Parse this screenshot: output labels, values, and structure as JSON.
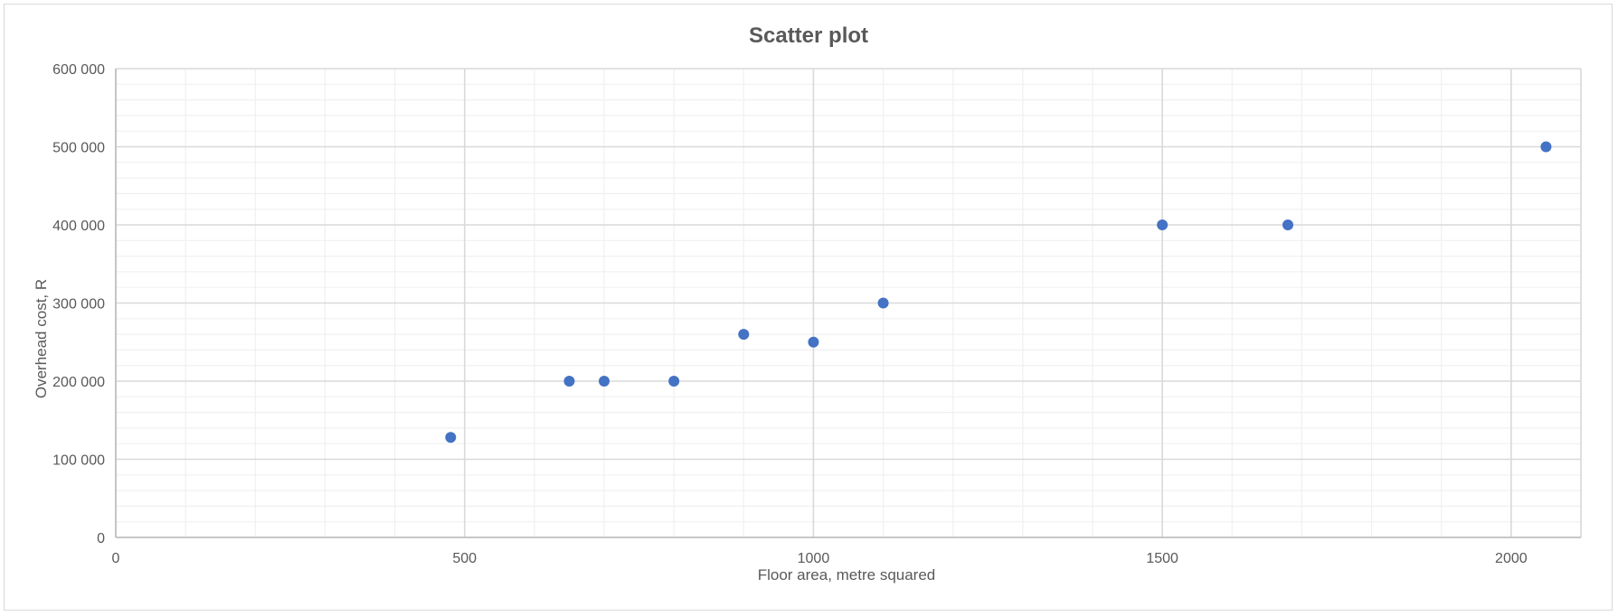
{
  "chart_data": {
    "type": "scatter",
    "title": "Scatter plot",
    "xlabel": "Floor area, metre squared",
    "ylabel": "Overhead cost, R",
    "xlim": [
      0,
      2100
    ],
    "ylim": [
      0,
      600000
    ],
    "x_ticks": [
      0,
      500,
      1000,
      1500,
      2000
    ],
    "x_tick_labels": [
      "0",
      "500",
      "1000",
      "1500",
      "2000"
    ],
    "y_ticks": [
      0,
      100000,
      200000,
      300000,
      400000,
      500000,
      600000
    ],
    "y_tick_labels": [
      "0",
      "100 000",
      "200 000",
      "300 000",
      "400 000",
      "500 000",
      "600 000"
    ],
    "x_minor_step": 100,
    "y_minor_step": 20000,
    "grid": true,
    "legend": "none",
    "series": [
      {
        "color": "#4472C4",
        "points": [
          {
            "x": 480,
            "y": 128000
          },
          {
            "x": 650,
            "y": 200000
          },
          {
            "x": 700,
            "y": 200000
          },
          {
            "x": 800,
            "y": 200000
          },
          {
            "x": 900,
            "y": 260000
          },
          {
            "x": 1000,
            "y": 250000
          },
          {
            "x": 1100,
            "y": 300000
          },
          {
            "x": 1500,
            "y": 400000
          },
          {
            "x": 1680,
            "y": 400000
          },
          {
            "x": 2050,
            "y": 500000
          }
        ]
      }
    ],
    "colors": {
      "major_grid": "#d9d9d9",
      "minor_grid": "#f0f0f0",
      "axis_line": "#bfbfbf",
      "text": "#595959"
    }
  }
}
